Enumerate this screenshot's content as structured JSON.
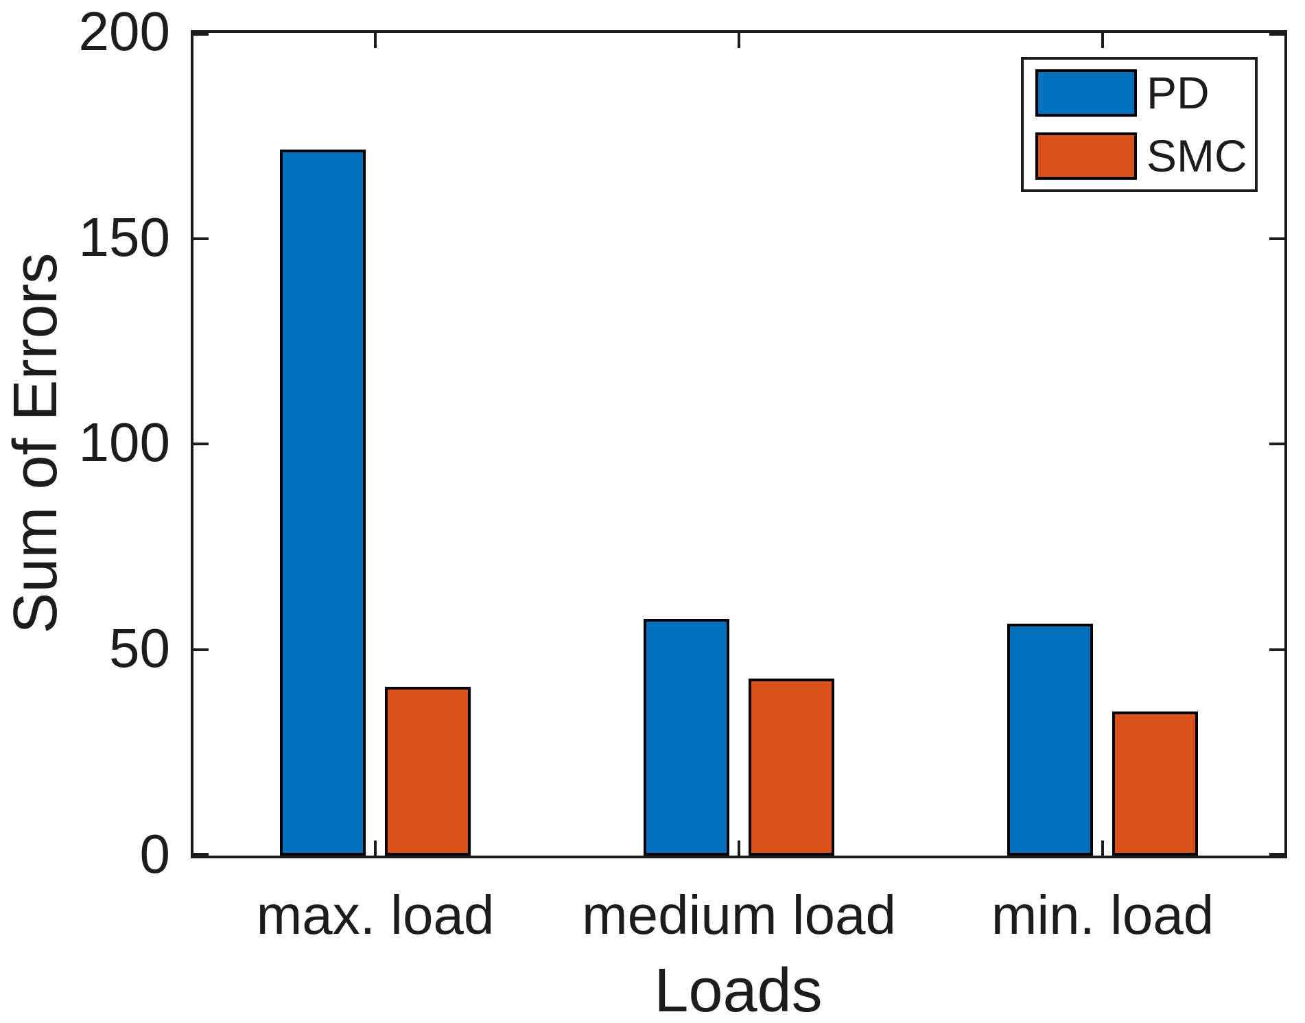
{
  "chart_data": {
    "type": "bar",
    "title": "",
    "xlabel": "Loads",
    "ylabel": "Sum of Errors",
    "categories": [
      "max. load",
      "medium load",
      "min. load"
    ],
    "series": [
      {
        "name": "PD",
        "color": "#0072BD",
        "values": [
          171.7,
          57.6,
          56.3
        ]
      },
      {
        "name": "SMC",
        "color": "#D95319",
        "values": [
          41.0,
          43.1,
          35.0
        ]
      }
    ],
    "ylim": [
      0,
      200
    ],
    "yticks": [
      0,
      50,
      100,
      150,
      200
    ],
    "grid": false,
    "legend_position": "top-right",
    "bar_edge_color": "#000000",
    "axis_color": "#1c1c1c"
  }
}
